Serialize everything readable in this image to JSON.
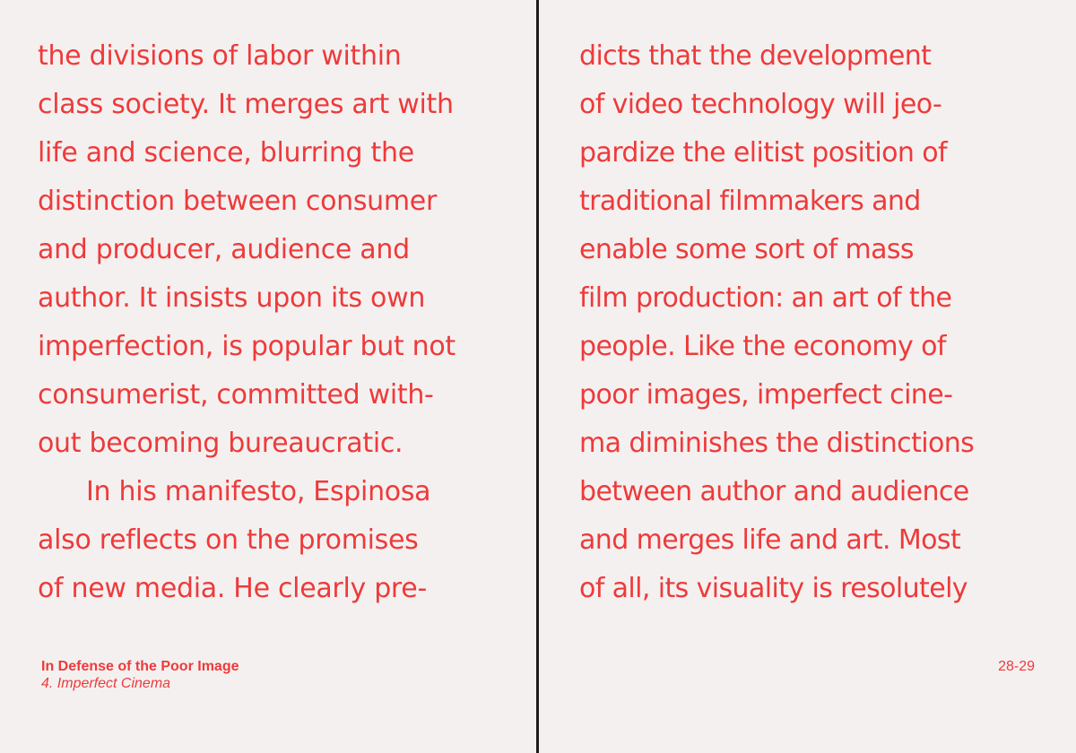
{
  "left_page": {
    "lines": [
      "the divisions of labor within",
      "class society. It merges art with",
      "life and science, blurring the",
      "distinction between consumer",
      "and producer, audience and",
      "author. It insists upon its own",
      "imperfection, is popular but not",
      "consumerist, committed with-",
      "out becoming bureaucratic.",
      "In his manifesto, Espinosa",
      "also reflects on the promises",
      "of new media. He clearly pre-"
    ]
  },
  "right_page": {
    "lines": [
      "dicts that the development",
      "of video technology will jeo-",
      "pardize the elitist position of",
      "traditional filmmakers and",
      "enable some sort of mass",
      "film production: an art of the",
      "people. Like the economy of",
      "poor images, imperfect cine-",
      "ma diminishes the distinctions",
      "between author and audience",
      "and merges life and art. Most",
      "of all, its visuality is resolutely"
    ]
  },
  "footer": {
    "title": "In Defense of the Poor Image",
    "section": "4. Imperfect Cinema",
    "page_numbers": "28-29"
  },
  "colors": {
    "text": "#ee3a3a",
    "paper": "#f4f0f0",
    "gutter": "#1c1c1c"
  }
}
